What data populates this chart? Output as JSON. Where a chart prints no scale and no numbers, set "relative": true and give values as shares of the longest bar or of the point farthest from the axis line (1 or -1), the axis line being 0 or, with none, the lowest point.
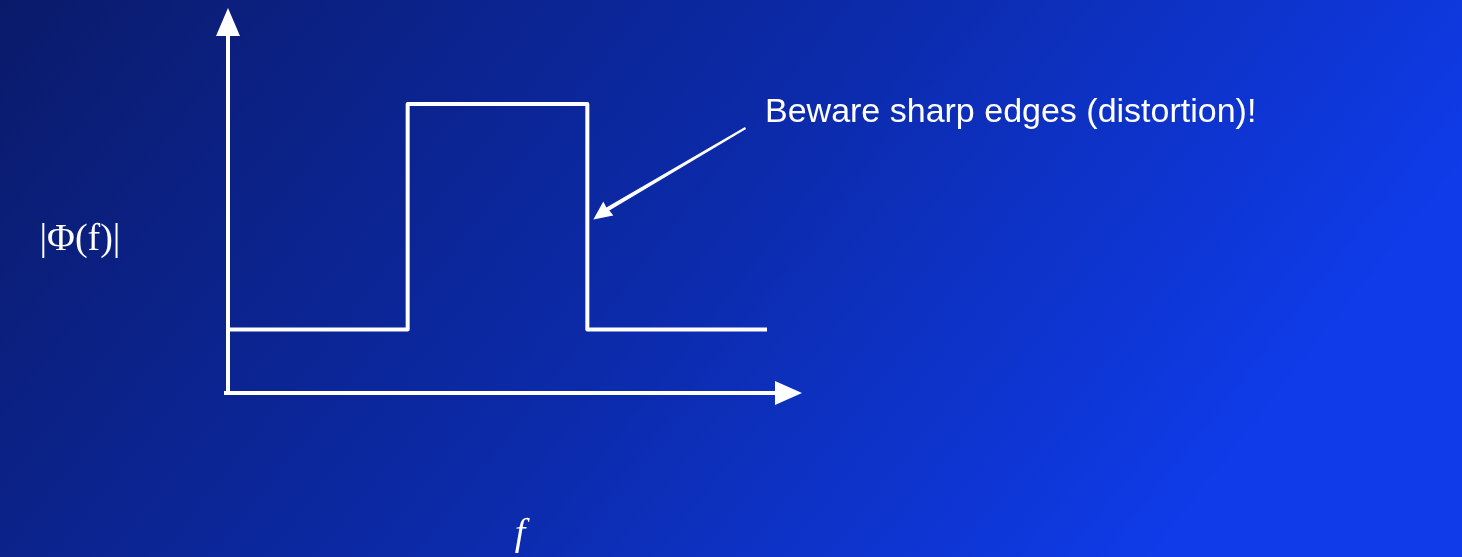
{
  "chart_data": {
    "type": "step",
    "relative": true,
    "categories": [
      null,
      null,
      null,
      null
    ],
    "values": [
      0.22,
      1,
      0.22,
      0.22
    ],
    "color": "#ffffff",
    "xlabel": "f",
    "ylabel": "|Φ(f)|",
    "annotations": [
      "Beware sharp edges (distortion)!"
    ]
  }
}
